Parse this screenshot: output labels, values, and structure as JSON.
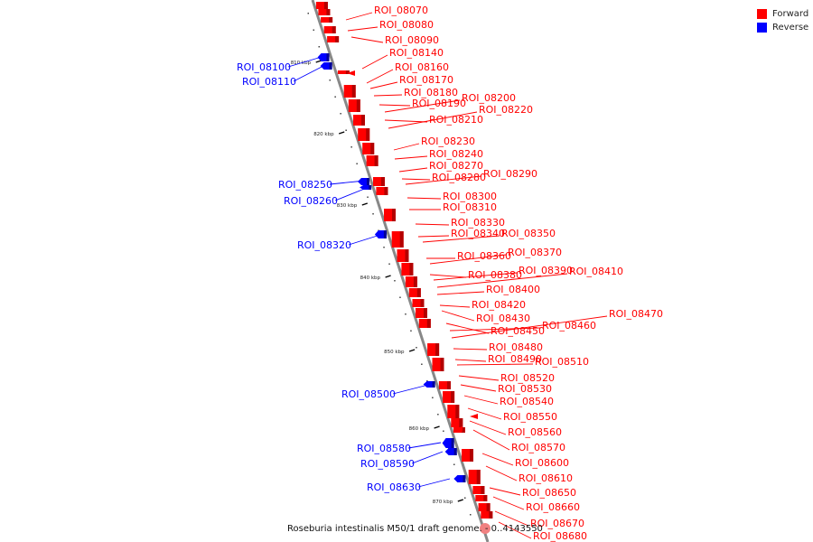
{
  "legend": {
    "items": [
      {
        "label": "Forward",
        "color": "#ff0000"
      },
      {
        "label": "Reverse",
        "color": "#0000ff"
      }
    ]
  },
  "caption": "Roseburia intestinalis M50/1 draft genome. - 0..4143550",
  "colors": {
    "forward": "#ff0000",
    "forward_shade": "#b30000",
    "reverse": "#0000ff",
    "reverse_shade": "#000099",
    "axis": "#888888",
    "faded": "#f08080"
  },
  "ticks": [
    "810 kbp",
    "820 kbp",
    "830 kbp",
    "840 kbp",
    "850 kbp",
    "860 kbp",
    "870 kbp"
  ],
  "genes_forward": [
    "ROI_08070",
    "ROI_08080",
    "ROI_08090",
    "ROI_08140",
    "ROI_08160",
    "ROI_08170",
    "ROI_08180",
    "ROI_08190",
    "ROI_08200",
    "ROI_08210",
    "ROI_08220",
    "ROI_08230",
    "ROI_08240",
    "ROI_08270",
    "ROI_08280",
    "ROI_08290",
    "ROI_08300",
    "ROI_08310",
    "ROI_08330",
    "ROI_08340",
    "ROI_08350",
    "ROI_08360",
    "ROI_08370",
    "ROI_08380",
    "ROI_08390",
    "ROI_08410",
    "ROI_08400",
    "ROI_08420",
    "ROI_08430",
    "ROI_08450",
    "ROI_08460",
    "ROI_08470",
    "ROI_08480",
    "ROI_08490",
    "ROI_08510",
    "ROI_08520",
    "ROI_08530",
    "ROI_08540",
    "ROI_08550",
    "ROI_08560",
    "ROI_08570",
    "ROI_08600",
    "ROI_08610",
    "ROI_08650",
    "ROI_08660",
    "ROI_08670",
    "ROI_08680"
  ],
  "genes_reverse": [
    "ROI_08100",
    "ROI_08110",
    "ROI_08250",
    "ROI_08260",
    "ROI_08320",
    "ROI_08500",
    "ROI_08580",
    "ROI_08590",
    "ROI_08630"
  ]
}
